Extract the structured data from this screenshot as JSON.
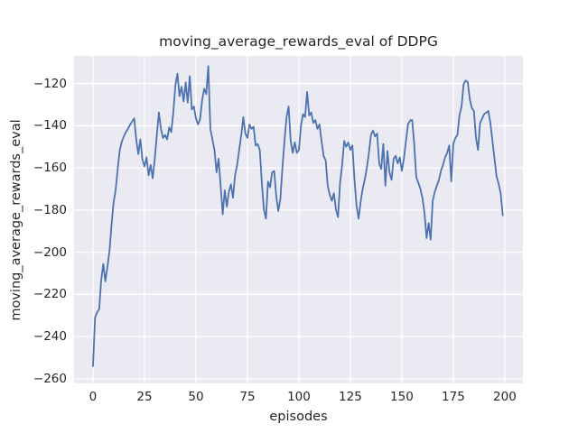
{
  "chart_data": {
    "type": "line",
    "title": "moving_average_rewards_eval of DDPG",
    "xlabel": "episodes",
    "ylabel": "moving_average_rewards_eval",
    "grid": true,
    "legend_position": "none",
    "background_color": "#EAEAF2",
    "grid_color": "#FFFFFF",
    "line_color": "#4C72B0",
    "text_color": "#262626",
    "x_start": 0,
    "xlim": [
      -9.2,
      208.8
    ],
    "ylim": [
      -262.2,
      -106.9
    ],
    "xticks": [
      0,
      25,
      50,
      75,
      100,
      125,
      150,
      175,
      200
    ],
    "yticks": [
      -260,
      -240,
      -220,
      -200,
      -180,
      -160,
      -140,
      -120
    ],
    "series": [
      {
        "name": "moving_average_rewards_eval",
        "values": [
          -254,
          -231,
          -228.5,
          -227,
          -213,
          -205.5,
          -213.8,
          -207,
          -199.5,
          -187,
          -176.5,
          -170.5,
          -160.5,
          -151.5,
          -147.5,
          -145,
          -143,
          -141.5,
          -139.5,
          -138,
          -136.5,
          -146.5,
          -153.5,
          -146.5,
          -156,
          -159.3,
          -155,
          -163.5,
          -158.6,
          -164.9,
          -155.7,
          -144.4,
          -133.7,
          -141.5,
          -145.8,
          -144.4,
          -146.5,
          -140.8,
          -143,
          -133.7,
          -121,
          -115.3,
          -126,
          -121.5,
          -128.5,
          -119.5,
          -129,
          -116.5,
          -132.3,
          -130.9,
          -136.6,
          -139.4,
          -136.9,
          -128,
          -122.4,
          -125,
          -111.7,
          -141.5,
          -146.5,
          -151.5,
          -162.1,
          -155.7,
          -168.5,
          -182,
          -170.6,
          -178.4,
          -171.3,
          -167.8,
          -174.2,
          -163.5,
          -158.6,
          -151.5,
          -144.4,
          -135.9,
          -143.7,
          -145.8,
          -139.4,
          -141.5,
          -140.5,
          -149.4,
          -148.7,
          -151.5,
          -167.1,
          -179.8,
          -184.1,
          -166.5,
          -169.2,
          -162.1,
          -161.5,
          -173.4,
          -180.5,
          -174.8,
          -160,
          -147.2,
          -135.9,
          -130.9,
          -147.2,
          -152.9,
          -147.9,
          -152.9,
          -151.5,
          -140.1,
          -134.5,
          -135.9,
          -124,
          -135.1,
          -133.7,
          -138.7,
          -137.3,
          -141.5,
          -139.4,
          -147.2,
          -154.3,
          -156.4,
          -168.5,
          -172.8,
          -175.6,
          -172,
          -179.8,
          -183.4,
          -167.1,
          -158.6,
          -147.2,
          -150,
          -147.9,
          -151.5,
          -149.4,
          -165.7,
          -178,
          -184.1,
          -176,
          -169.9,
          -165.6,
          -160,
          -152.9,
          -144.4,
          -142.3,
          -145.1,
          -143.7,
          -157.9,
          -160.5,
          -148.6,
          -168.5,
          -152,
          -162.1,
          -165.7,
          -155.7,
          -154.3,
          -157.9,
          -155,
          -161.4,
          -155.7,
          -147.2,
          -139.4,
          -137.5,
          -137.3,
          -148.6,
          -164.3,
          -167.1,
          -169.9,
          -174.2,
          -181.3,
          -193.3,
          -186.2,
          -194,
          -175.6,
          -171.3,
          -168.5,
          -165.7,
          -161.4,
          -158.6,
          -155,
          -152.9,
          -149.4,
          -166.4,
          -148.6,
          -145.8,
          -144.4,
          -135,
          -130.9,
          -120.3,
          -118.6,
          -119.2,
          -127.4,
          -131.6,
          -133,
          -145.8,
          -151.5,
          -138.7,
          -136.6,
          -134.5,
          -133.8,
          -133,
          -138.7,
          -147.2,
          -155.7,
          -164,
          -167.5,
          -172,
          -182.5
        ]
      }
    ]
  }
}
